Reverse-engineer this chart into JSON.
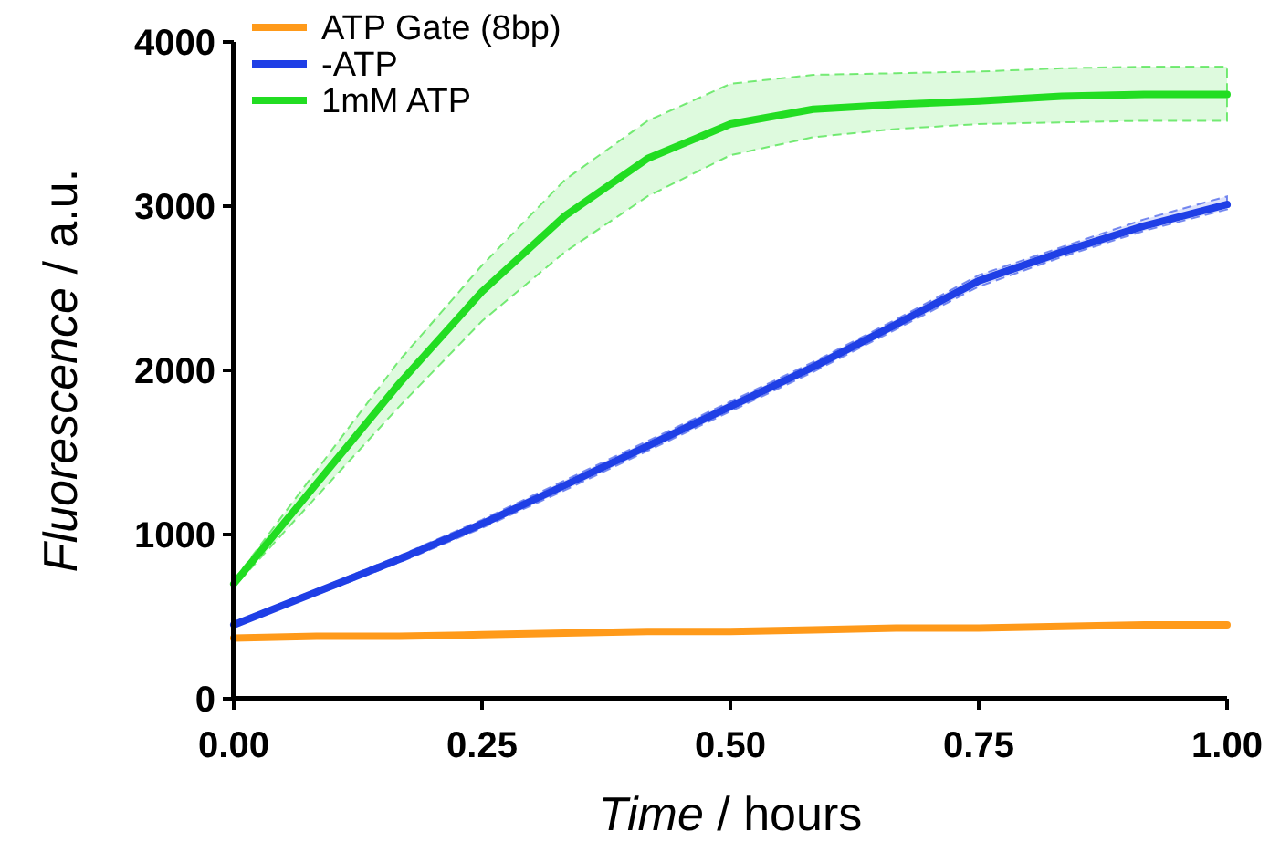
{
  "chart_data": {
    "type": "line",
    "xlabel": "Time / hours",
    "ylabel": "Fluorescence / a.u.",
    "x": [
      0,
      0.0833,
      0.1667,
      0.25,
      0.3333,
      0.4167,
      0.5,
      0.5833,
      0.6667,
      0.75,
      0.8333,
      0.9167,
      1
    ],
    "series": [
      {
        "name": "ATP Gate (8bp)",
        "color": "#ff9a1a",
        "values": [
          370,
          380,
          380,
          390,
          400,
          410,
          410,
          420,
          430,
          430,
          440,
          450,
          450
        ]
      },
      {
        "name": "-ATP",
        "color": "#1f3fe6",
        "values": [
          450,
          650,
          850,
          1065,
          1300,
          1540,
          1780,
          2020,
          2280,
          2545,
          2720,
          2880,
          3010
        ],
        "lower": [
          445,
          635,
          830,
          1040,
          1270,
          1510,
          1750,
          1990,
          2250,
          2510,
          2690,
          2850,
          2980
        ],
        "upper": [
          465,
          665,
          870,
          1090,
          1330,
          1570,
          1810,
          2050,
          2310,
          2580,
          2750,
          2920,
          3060
        ]
      },
      {
        "name": "1mM ATP",
        "color": "#22dd22",
        "values": [
          700,
          1310,
          1920,
          2480,
          2940,
          3290,
          3500,
          3590,
          3620,
          3640,
          3670,
          3680,
          3680
        ],
        "lower": [
          680,
          1230,
          1780,
          2300,
          2720,
          3060,
          3310,
          3420,
          3470,
          3500,
          3510,
          3520,
          3520
        ],
        "upper": [
          720,
          1390,
          2060,
          2640,
          3160,
          3520,
          3745,
          3800,
          3810,
          3820,
          3840,
          3850,
          3850
        ]
      }
    ],
    "xlim": [
      0,
      1
    ],
    "xticks": [
      {
        "value": 0,
        "label": "0.00"
      },
      {
        "value": 0.25,
        "label": "0.25"
      },
      {
        "value": 0.5,
        "label": "0.50"
      },
      {
        "value": 0.75,
        "label": "0.75"
      },
      {
        "value": 1,
        "label": "1.00"
      }
    ],
    "ylim": [
      0,
      4000
    ],
    "yticks": [
      0,
      1000,
      2000,
      3000,
      4000
    ],
    "grid": false,
    "legend": "top left",
    "marker": "none",
    "line_style": "solid"
  }
}
